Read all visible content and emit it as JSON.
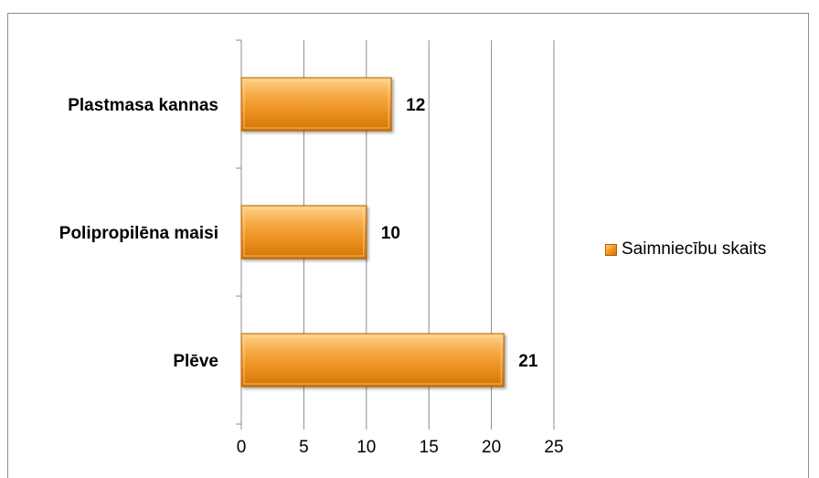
{
  "chart_data": {
    "type": "bar",
    "orientation": "horizontal",
    "categories": [
      "Plastmasa kannas",
      "Polipropilēna maisi",
      "Plēve"
    ],
    "series": [
      {
        "name": "Saimniecību skaits",
        "values": [
          12,
          10,
          21
        ],
        "color": "#f39a28"
      }
    ],
    "x_ticks": [
      "0",
      "5",
      "10",
      "15",
      "20",
      "25"
    ],
    "xlim": [
      0,
      25
    ],
    "grid": "vertical",
    "legend_position": "right",
    "data_labels": true
  },
  "legend": {
    "label": "Saimniecību skaits"
  },
  "colors": {
    "bar_light": "#ffd08a",
    "bar_mid": "#f39a28",
    "bar_dark": "#d77400",
    "bar_border": "#b35f00",
    "grid": "#8c8c8c"
  }
}
